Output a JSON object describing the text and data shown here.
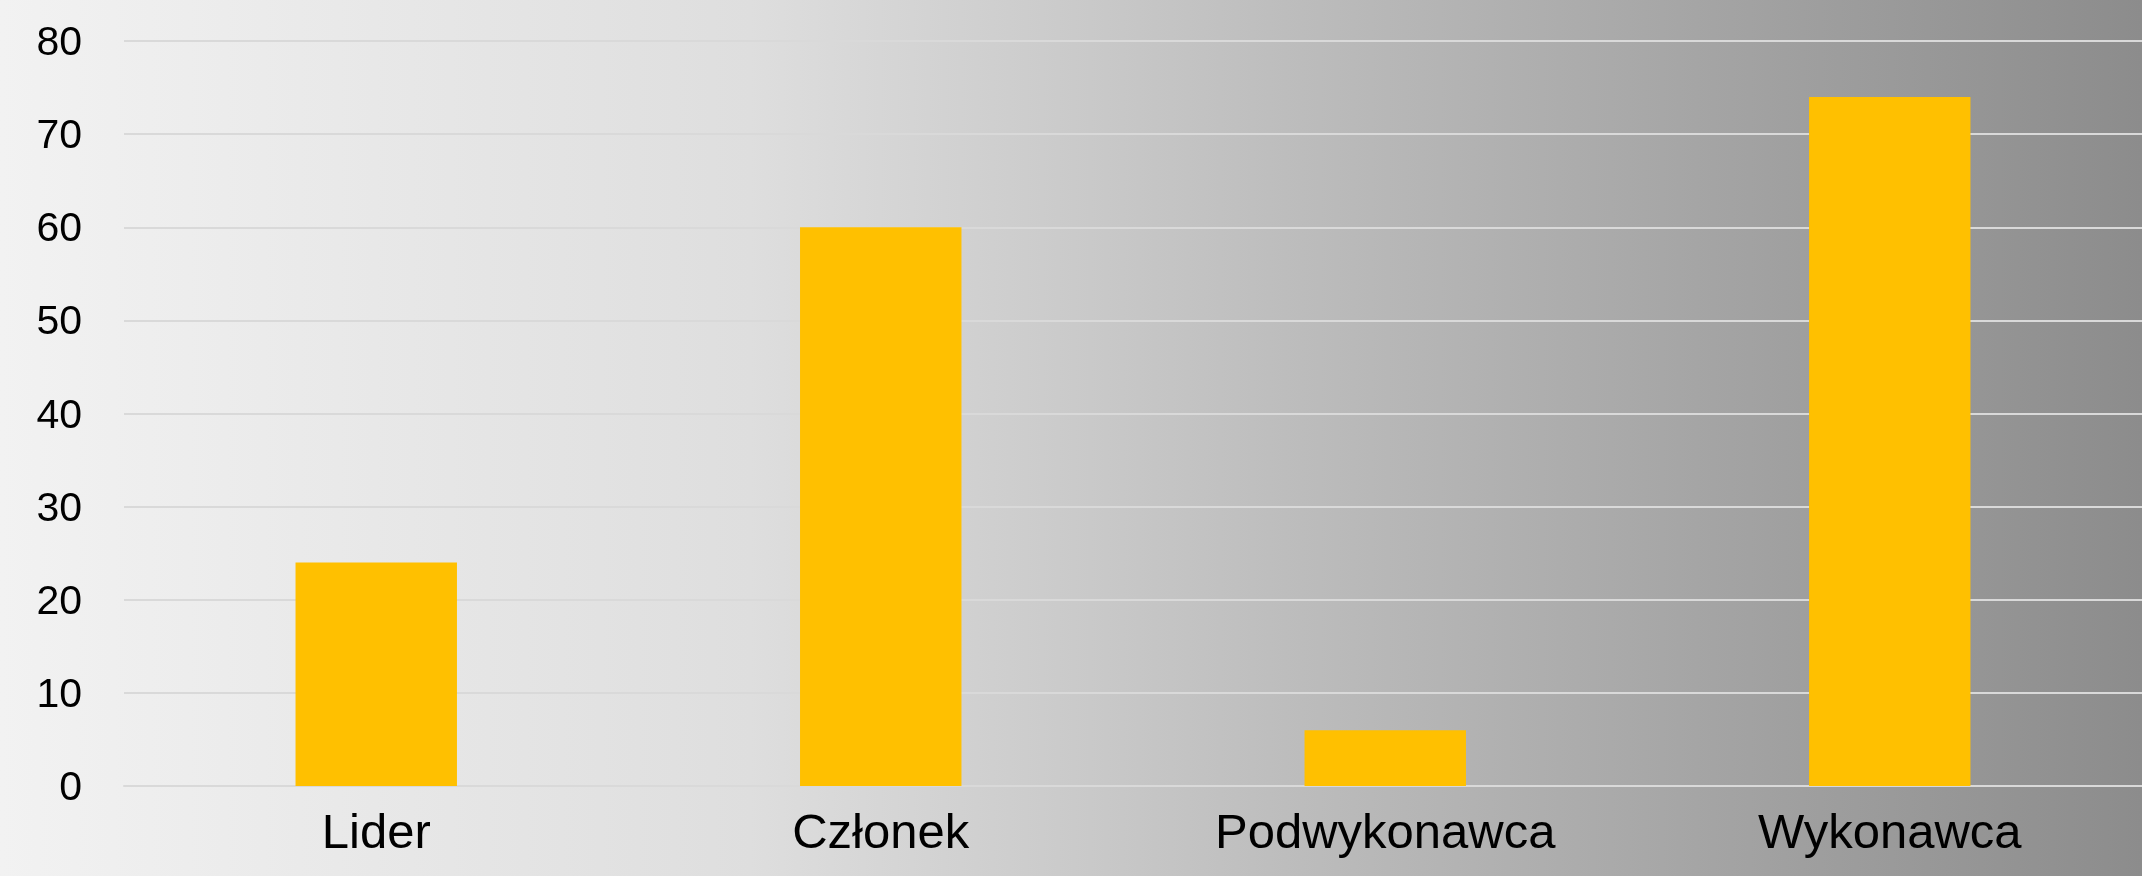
{
  "chart_data": {
    "type": "bar",
    "categories": [
      "Lider",
      "Członek",
      "Podwykonawca",
      "Wykonawca"
    ],
    "values": [
      24,
      60,
      6,
      74
    ],
    "color": "#ffc000",
    "ylim": [
      0,
      80
    ],
    "yticks": [
      0,
      10,
      20,
      30,
      40,
      50,
      60,
      70,
      80
    ],
    "grid": "y"
  }
}
